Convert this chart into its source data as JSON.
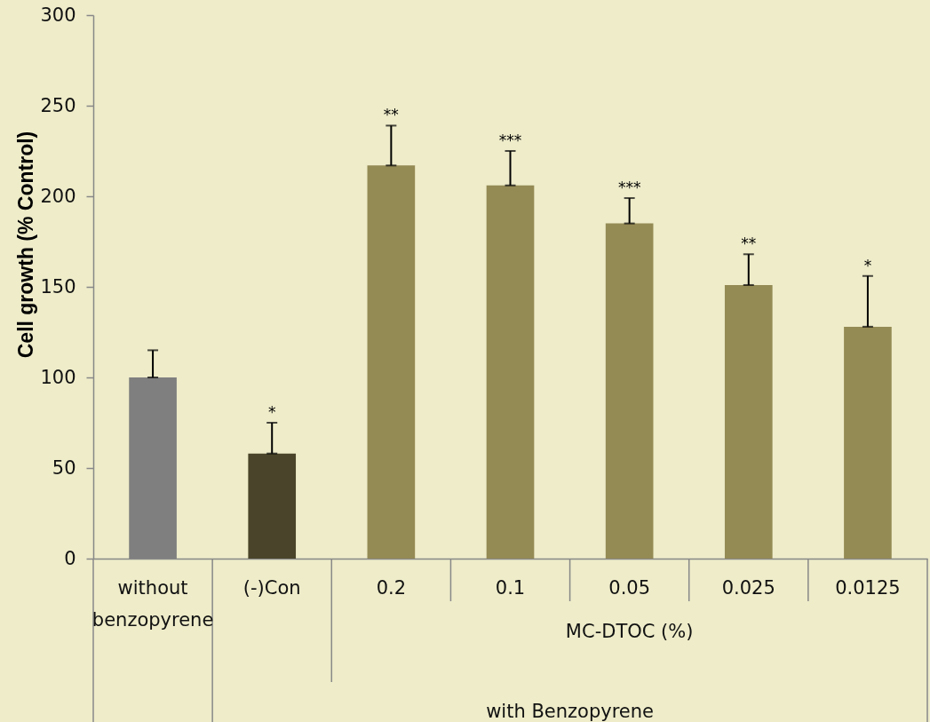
{
  "chart_data": {
    "type": "bar",
    "ylabel": "Cell growth (% Control)",
    "xlabel": "MC-DTOC (%)",
    "categories": [
      "without benzopyrene",
      "(-)Con",
      "0.2",
      "0.1",
      "0.05",
      "0.025",
      "0.0125"
    ],
    "values": [
      100,
      58,
      217,
      206,
      185,
      151,
      128
    ],
    "colors": [
      "#7f7f7f",
      "#4a452a",
      "#948a54",
      "#948a54",
      "#948a54",
      "#948a54",
      "#948a54"
    ],
    "errors": [
      [
        100,
        115
      ],
      [
        58,
        75
      ],
      [
        217,
        239
      ],
      [
        206,
        225
      ],
      [
        185,
        199
      ],
      [
        151,
        168
      ],
      [
        128,
        156
      ]
    ],
    "ylim": [
      0,
      300
    ],
    "yticks": [
      0,
      50,
      100,
      150,
      200,
      250,
      300
    ],
    "annotations": [
      "*",
      "**",
      "***",
      "***",
      "**",
      "*",
      "with Benzopyrene"
    ]
  }
}
